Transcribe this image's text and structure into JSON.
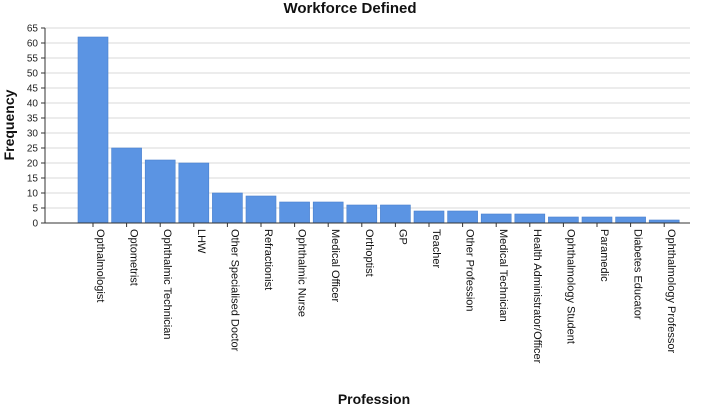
{
  "chart_data": {
    "type": "bar",
    "title": "Workforce Defined",
    "xlabel": "Profession",
    "ylabel": "Frequency",
    "ylim": [
      0,
      65
    ],
    "yticks": [
      0,
      5,
      10,
      15,
      20,
      25,
      30,
      35,
      40,
      45,
      50,
      55,
      60,
      65
    ],
    "grid": true,
    "bar_color": "#5b94e3",
    "categories": [
      "Opthalmologist",
      "Optometrist",
      "Ophthalmic Technician",
      "LHW",
      "Other Specialised Doctor",
      "Refractionist",
      "Ophthalmic Nurse",
      "Medical Officer",
      "Orthoptist",
      "GP",
      "Teacher",
      "Other Profession",
      "Medical Technician",
      "Health Administrator/Officer",
      "Ophthalmology Student",
      "Paramedic",
      "Diabetes Educator",
      "Ophthalmology Professor"
    ],
    "values": [
      62,
      25,
      21,
      20,
      10,
      9,
      7,
      7,
      6,
      6,
      4,
      4,
      3,
      3,
      2,
      2,
      2,
      1
    ]
  }
}
